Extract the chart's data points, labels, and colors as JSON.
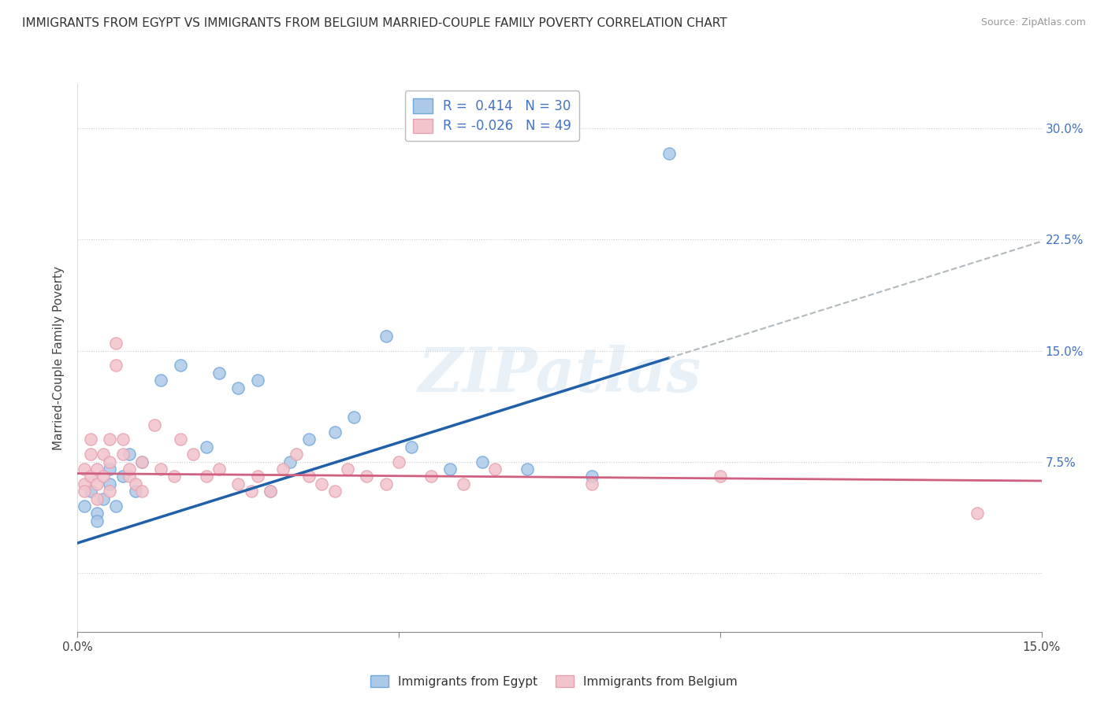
{
  "title": "IMMIGRANTS FROM EGYPT VS IMMIGRANTS FROM BELGIUM MARRIED-COUPLE FAMILY POVERTY CORRELATION CHART",
  "source": "Source: ZipAtlas.com",
  "ylabel": "Married-Couple Family Poverty",
  "xlim": [
    0.0,
    0.15
  ],
  "ylim": [
    -0.04,
    0.33
  ],
  "xtick_positions": [
    0.0,
    0.05,
    0.1,
    0.15
  ],
  "xtick_labels": [
    "0.0%",
    "",
    "",
    "15.0%"
  ],
  "ytick_positions": [
    0.0,
    0.075,
    0.15,
    0.225,
    0.3
  ],
  "ytick_labels": [
    "",
    "7.5%",
    "15.0%",
    "22.5%",
    "30.0%"
  ],
  "egypt_color": "#6fa8dc",
  "egypt_color_fill": "#adc9e8",
  "belgium_color": "#e8a0b0",
  "belgium_color_fill": "#f2c4cc",
  "trendline_egypt_color": "#2060a8",
  "trendline_belgium_color": "#d06080",
  "trendline_egypt_ext_color": "#b0b8c0",
  "R_egypt": 0.414,
  "N_egypt": 30,
  "R_belgium": -0.026,
  "N_belgium": 49,
  "legend_label_egypt": "Immigrants from Egypt",
  "legend_label_belgium": "Immigrants from Belgium",
  "watermark": "ZIPatlas",
  "egypt_x": [
    0.001,
    0.002,
    0.003,
    0.003,
    0.004,
    0.005,
    0.005,
    0.006,
    0.007,
    0.008,
    0.009,
    0.01,
    0.013,
    0.016,
    0.02,
    0.022,
    0.025,
    0.028,
    0.03,
    0.033,
    0.036,
    0.04,
    0.043,
    0.048,
    0.052,
    0.058,
    0.063,
    0.07,
    0.08,
    0.092
  ],
  "egypt_y": [
    0.045,
    0.055,
    0.04,
    0.035,
    0.05,
    0.06,
    0.07,
    0.045,
    0.065,
    0.08,
    0.055,
    0.075,
    0.13,
    0.14,
    0.085,
    0.135,
    0.125,
    0.13,
    0.055,
    0.075,
    0.09,
    0.095,
    0.105,
    0.16,
    0.085,
    0.07,
    0.075,
    0.07,
    0.065,
    0.283
  ],
  "belgium_x": [
    0.001,
    0.001,
    0.001,
    0.002,
    0.002,
    0.002,
    0.003,
    0.003,
    0.003,
    0.004,
    0.004,
    0.005,
    0.005,
    0.005,
    0.006,
    0.006,
    0.007,
    0.007,
    0.008,
    0.008,
    0.009,
    0.01,
    0.01,
    0.012,
    0.013,
    0.015,
    0.016,
    0.018,
    0.02,
    0.022,
    0.025,
    0.027,
    0.028,
    0.03,
    0.032,
    0.034,
    0.036,
    0.038,
    0.04,
    0.042,
    0.045,
    0.048,
    0.05,
    0.055,
    0.06,
    0.065,
    0.08,
    0.1,
    0.14
  ],
  "belgium_y": [
    0.06,
    0.055,
    0.07,
    0.065,
    0.08,
    0.09,
    0.05,
    0.06,
    0.07,
    0.065,
    0.08,
    0.055,
    0.075,
    0.09,
    0.14,
    0.155,
    0.08,
    0.09,
    0.065,
    0.07,
    0.06,
    0.055,
    0.075,
    0.1,
    0.07,
    0.065,
    0.09,
    0.08,
    0.065,
    0.07,
    0.06,
    0.055,
    0.065,
    0.055,
    0.07,
    0.08,
    0.065,
    0.06,
    0.055,
    0.07,
    0.065,
    0.06,
    0.075,
    0.065,
    0.06,
    0.07,
    0.06,
    0.065,
    0.04
  ]
}
